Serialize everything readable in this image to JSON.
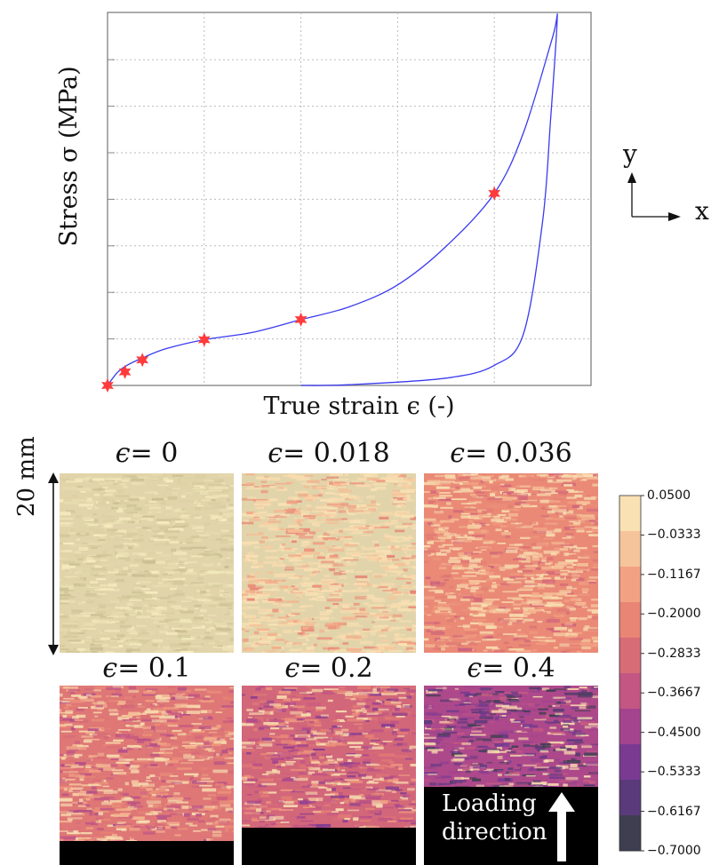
{
  "chart_data": {
    "type": "line",
    "xlabel": "True strain ϵ (-)",
    "ylabel": "Stress σ (MPa)",
    "x_ticks_labeled": false,
    "y_ticks_labeled": false,
    "grid": true,
    "curve_color": "#3a3af0",
    "marker_color": "#ff3b3b",
    "curve": [
      [
        0.0,
        0.0
      ],
      [
        0.01,
        0.035
      ],
      [
        0.02,
        0.055
      ],
      [
        0.036,
        0.075
      ],
      [
        0.06,
        0.1
      ],
      [
        0.1,
        0.125
      ],
      [
        0.15,
        0.145
      ],
      [
        0.2,
        0.18
      ],
      [
        0.25,
        0.215
      ],
      [
        0.3,
        0.275
      ],
      [
        0.35,
        0.38
      ],
      [
        0.4,
        0.525
      ],
      [
        0.43,
        0.69
      ],
      [
        0.46,
        0.95
      ],
      [
        0.465,
        1.0
      ],
      [
        0.458,
        0.72
      ],
      [
        0.45,
        0.45
      ],
      [
        0.43,
        0.14
      ],
      [
        0.4,
        0.055
      ],
      [
        0.35,
        0.02
      ],
      [
        0.25,
        0.002
      ],
      [
        0.2,
        0.0
      ]
    ],
    "markers": [
      [
        0.0,
        0.0
      ],
      [
        0.018,
        0.037
      ],
      [
        0.036,
        0.07
      ],
      [
        0.1,
        0.125
      ],
      [
        0.2,
        0.18
      ],
      [
        0.4,
        0.525
      ]
    ]
  },
  "axes_indicator": {
    "x": "x",
    "y": "y"
  },
  "panels": [
    {
      "label": "0",
      "level": 0.0
    },
    {
      "label": "0.018",
      "level": 0.12
    },
    {
      "label": "0.036",
      "level": 0.3
    },
    {
      "label": "0.1",
      "level": 0.45
    },
    {
      "label": "0.2",
      "level": 0.58
    },
    {
      "label": "0.4",
      "level": 0.88
    }
  ],
  "panel_label_prefix": "ϵ",
  "panel_label_equals": "= ",
  "scale_label": "20 mm",
  "loading_label": {
    "line1": "Loading",
    "line2": "direction"
  },
  "colorbar": {
    "ticks": [
      "0.0500",
      "−0.0333",
      "−0.1167",
      "−0.2000",
      "−0.2833",
      "−0.3667",
      "−0.4500",
      "−0.5333",
      "−0.6167",
      "−0.7000"
    ],
    "colors": [
      "#f9e1b4",
      "#f6c49a",
      "#f2a283",
      "#e88574",
      "#d76c77",
      "#c35683",
      "#a4448e",
      "#7a3a92",
      "#5a3a7a",
      "#3e3e50"
    ]
  }
}
